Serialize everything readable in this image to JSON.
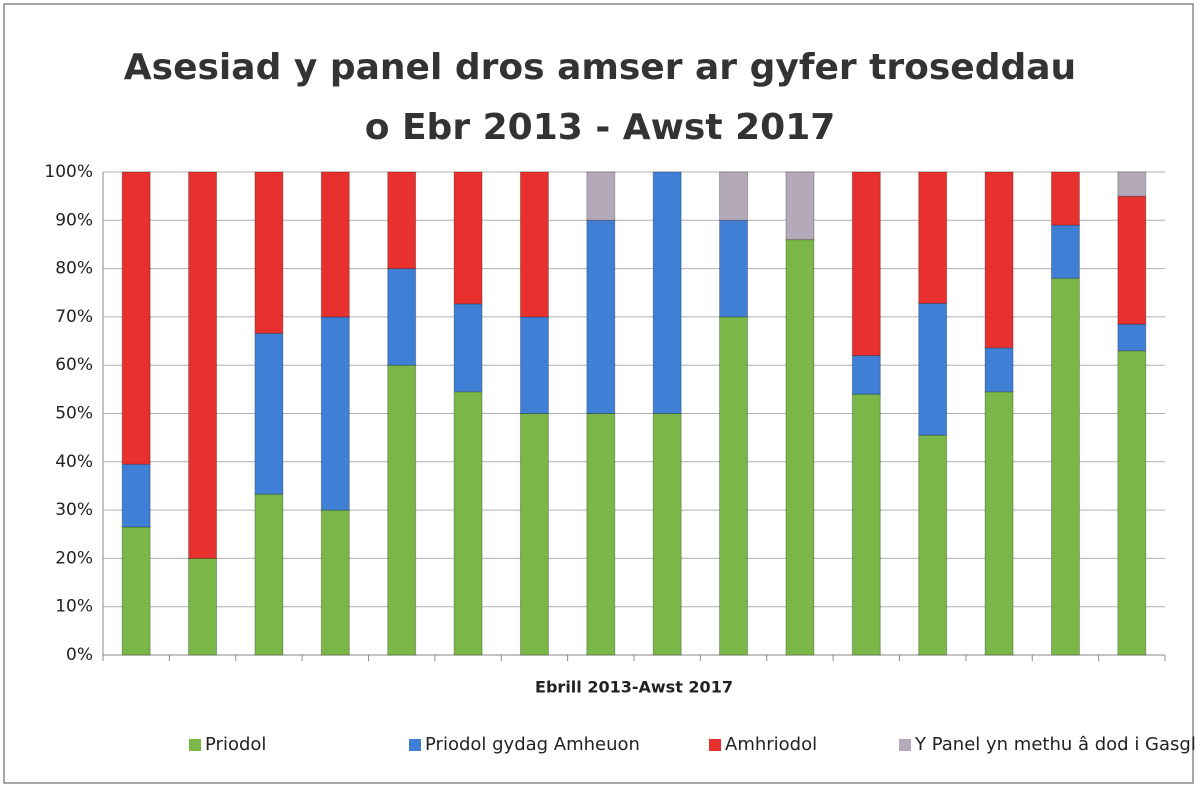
{
  "chart_data": {
    "type": "stacked_bar",
    "title": "Asesiad y panel dros amser ar gyfer troseddau o Ebr 2013 - Awst 2017",
    "x_label": "Ebrill 2013-Awst 2017",
    "categories": [
      null,
      null,
      null,
      null,
      null,
      null,
      null,
      null,
      null,
      null,
      null,
      null,
      null,
      null,
      null,
      null
    ],
    "series": [
      {
        "name": "Priodol",
        "color": "#7ab648",
        "values": [
          26.5,
          20,
          33.3,
          30,
          60,
          54.5,
          50,
          50,
          50,
          70,
          86,
          54,
          45.5,
          54.5,
          78,
          63
        ]
      },
      {
        "name": "Priodol gydag Amheuon",
        "color": "#3f7fd6",
        "values": [
          13,
          0,
          33.3,
          40,
          20,
          18.2,
          20,
          40,
          50,
          20,
          0,
          8,
          27.3,
          9.1,
          11,
          5.5
        ]
      },
      {
        "name": "Amhriodol",
        "color": "#e8312f",
        "values": [
          60.5,
          80,
          33.4,
          30,
          20,
          27.3,
          30,
          0,
          0,
          0,
          0,
          38,
          27.2,
          36.4,
          11,
          26.5
        ]
      },
      {
        "name": "Y Panel yn methu â dod i Gasgliad",
        "color": "#b4a9b8",
        "values": [
          0,
          0,
          0,
          0,
          0,
          0,
          0,
          10,
          0,
          10,
          14,
          0,
          0,
          0,
          0,
          5
        ]
      }
    ],
    "ylim": [
      0,
      100
    ],
    "yticks": [
      {
        "value": 0,
        "label": "0%"
      },
      {
        "value": 10,
        "label": "10%"
      },
      {
        "value": 20,
        "label": "20%"
      },
      {
        "value": 30,
        "label": "30%"
      },
      {
        "value": 40,
        "label": "40%"
      },
      {
        "value": 50,
        "label": "50%"
      },
      {
        "value": 60,
        "label": "60%"
      },
      {
        "value": 70,
        "label": "70%"
      },
      {
        "value": 80,
        "label": "80%"
      },
      {
        "value": 90,
        "label": "90%"
      },
      {
        "value": 100,
        "label": "100%"
      }
    ],
    "grid": true,
    "legend": "bottom"
  }
}
